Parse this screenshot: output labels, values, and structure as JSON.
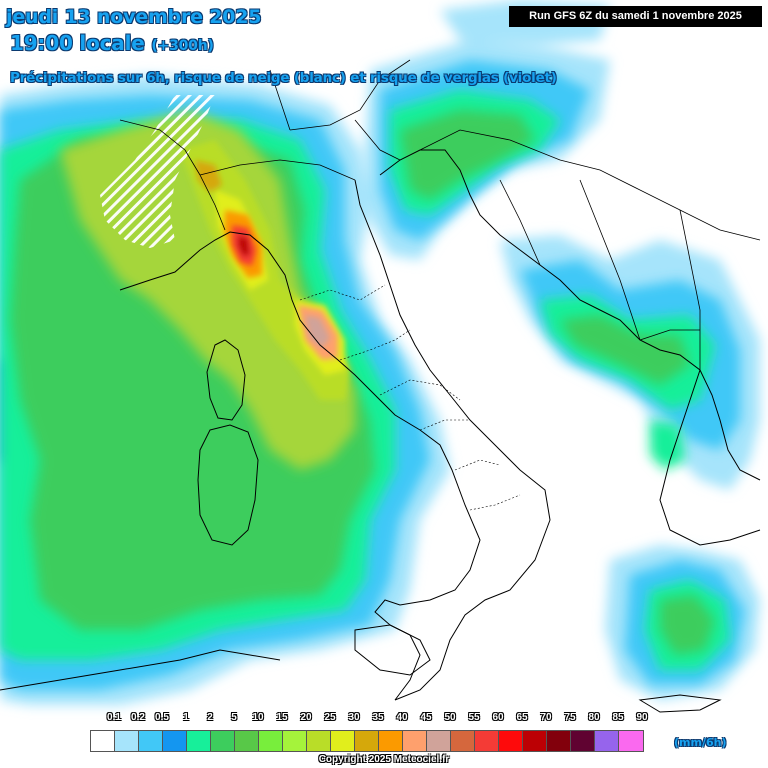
{
  "header": {
    "date_title": "jeudi 13 novembre 2025",
    "time_title": "19:00 locale",
    "time_offset": "(+300h)",
    "subtitle": "Précipitations sur 6h, risque de neige (blanc) et risque de verglas (violet)",
    "run_info": "Run GFS 6Z du samedi 1 novembre 2025"
  },
  "legend": {
    "unit": "(mm/6h)",
    "ticks": [
      "0.1",
      "0.2",
      "0.5",
      "1",
      "2",
      "5",
      "10",
      "15",
      "20",
      "25",
      "30",
      "35",
      "40",
      "45",
      "50",
      "55",
      "60",
      "65",
      "70",
      "75",
      "80",
      "85",
      "90"
    ],
    "colors": [
      "#ffffff",
      "#a6e4fb",
      "#41c8f7",
      "#1496f0",
      "#17ef9a",
      "#3dcd5d",
      "#58c848",
      "#78ee3c",
      "#a5f33b",
      "#b9dd28",
      "#e1ee1c",
      "#d5a80b",
      "#fb9a00",
      "#fea06d",
      "#d0a39a",
      "#d5673d",
      "#f43b36",
      "#fe0a0b",
      "#bc0004",
      "#82000c",
      "#600331",
      "#9664ec",
      "#fa69ef"
    ]
  },
  "copyright": "Copyright 2025 Meteociel.fr",
  "colors": {
    "title_blue": "#17a2f0",
    "land_background": "#ffffff",
    "border_lines": "#000000"
  }
}
